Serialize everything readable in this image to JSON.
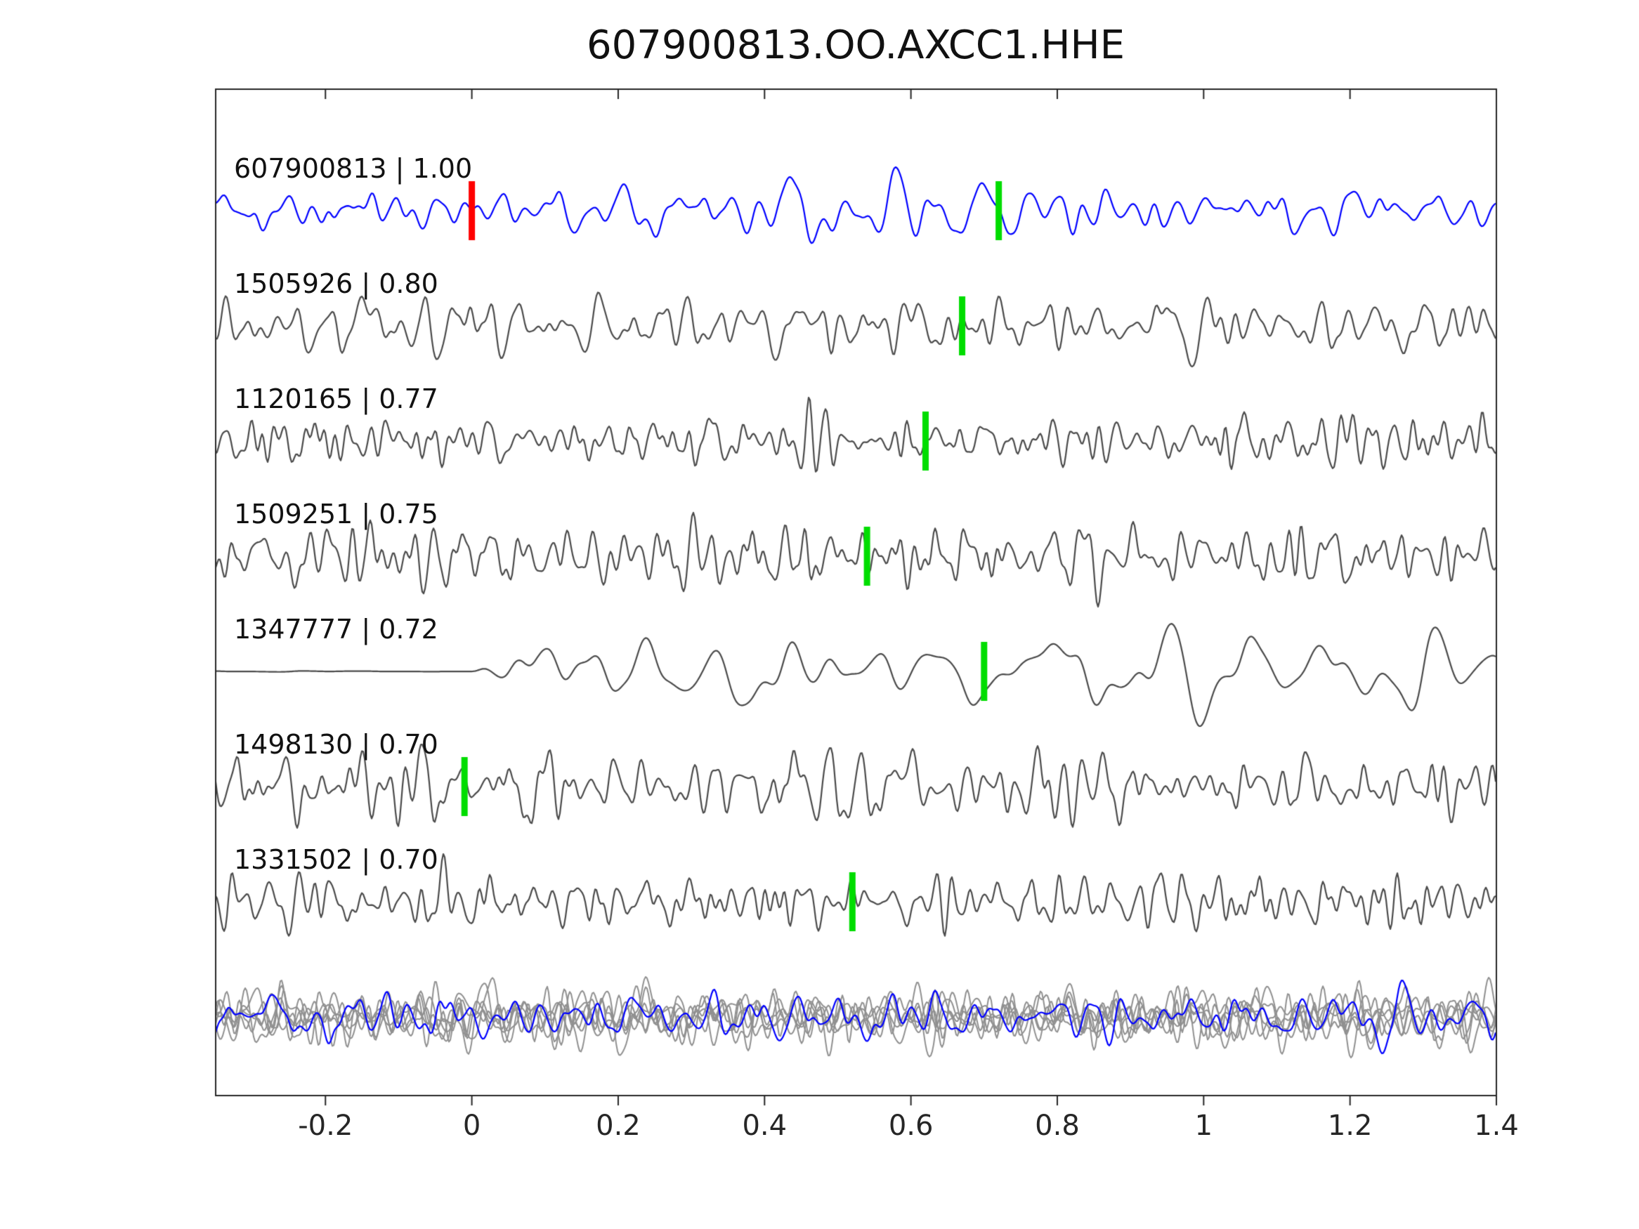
{
  "chart_data": {
    "type": "line",
    "subtype": "seismic-waveform-stack",
    "title": "607900813.OO.AXCC1.HHE",
    "xlim": [
      -0.35,
      1.4
    ],
    "xticks": [
      -0.2,
      0,
      0.2,
      0.4,
      0.6,
      0.8,
      1,
      1.2,
      1.4
    ],
    "xtick_labels": [
      "-0.2",
      "0",
      "0.2",
      "0.4",
      "0.6",
      "0.8",
      "1",
      "1.2",
      "1.4"
    ],
    "background": "#ffffff",
    "frame_color": "#262626",
    "marker_colors": {
      "pick": "#00dd00",
      "origin": "#ff0000"
    },
    "traces": [
      {
        "id": "607900813",
        "correlation": "1.00",
        "label": "607900813 | 1.00",
        "color": "#0000ff",
        "markers": [
          {
            "x": 0.0,
            "color": "#ff0000",
            "name": "origin-marker"
          },
          {
            "x": 0.72,
            "color": "#00dd00",
            "name": "pick-marker"
          }
        ],
        "style": {
          "seed": 101,
          "kc": 16,
          "amp": 62
        }
      },
      {
        "id": "1505926",
        "correlation": "0.80",
        "label": "1505926 | 0.80",
        "color": "#4a4a4a",
        "markers": [
          {
            "x": 0.67,
            "color": "#00dd00",
            "name": "pick-marker"
          }
        ],
        "style": {
          "seed": 202,
          "kc": 22,
          "amp": 58
        }
      },
      {
        "id": "1120165",
        "correlation": "0.77",
        "label": "1120165 | 0.77",
        "color": "#4a4a4a",
        "markers": [
          {
            "x": 0.62,
            "color": "#00dd00",
            "name": "pick-marker"
          }
        ],
        "style": {
          "seed": 303,
          "kc": 34,
          "amp": 62
        }
      },
      {
        "id": "1509251",
        "correlation": "0.75",
        "label": "1509251 | 0.75",
        "color": "#4a4a4a",
        "markers": [
          {
            "x": 0.54,
            "color": "#00dd00",
            "name": "pick-marker"
          }
        ],
        "style": {
          "seed": 404,
          "kc": 30,
          "amp": 72
        }
      },
      {
        "id": "1347777",
        "correlation": "0.72",
        "label": "1347777 | 0.72",
        "color": "#4a4a4a",
        "markers": [
          {
            "x": 0.7,
            "color": "#00dd00",
            "name": "pick-marker"
          }
        ],
        "style": {
          "seed": 505,
          "kc": 9,
          "amp": 78,
          "onset": 0.2
        }
      },
      {
        "id": "1498130",
        "correlation": "0.70",
        "label": "1498130 | 0.70",
        "color": "#4a4a4a",
        "markers": [
          {
            "x": -0.01,
            "color": "#00dd00",
            "name": "pick-marker"
          }
        ],
        "style": {
          "seed": 606,
          "kc": 26,
          "amp": 60
        }
      },
      {
        "id": "1331502",
        "correlation": "0.70",
        "label": "1331502 | 0.70",
        "color": "#4a4a4a",
        "markers": [
          {
            "x": 0.52,
            "color": "#00dd00",
            "name": "pick-marker"
          }
        ],
        "style": {
          "seed": 707,
          "kc": 32,
          "amp": 68
        }
      }
    ],
    "overlay_row": {
      "gray_color": "#909090",
      "blue_color": "#0000ff",
      "gray_traces": [
        {
          "seed": 812,
          "kc": 24,
          "amp": 55
        },
        {
          "seed": 813,
          "kc": 30,
          "amp": 50
        },
        {
          "seed": 814,
          "kc": 20,
          "amp": 58
        },
        {
          "seed": 815,
          "kc": 34,
          "amp": 48
        },
        {
          "seed": 816,
          "kc": 26,
          "amp": 52
        },
        {
          "seed": 817,
          "kc": 22,
          "amp": 56
        }
      ],
      "blue_trace": {
        "seed": 811,
        "kc": 18,
        "amp": 52
      }
    }
  }
}
